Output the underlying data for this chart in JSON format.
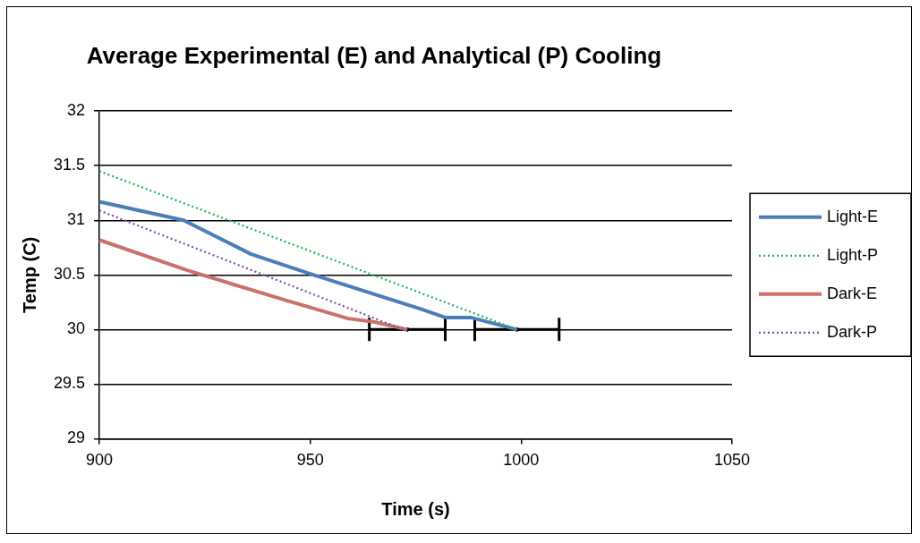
{
  "chart_data": {
    "type": "line",
    "title": "Average Experimental (E) and Analytical (P) Cooling",
    "xlabel": "Time (s)",
    "ylabel": "Temp (C)",
    "xlim": [
      900,
      1050
    ],
    "xticks": [
      900,
      950,
      1000,
      1050
    ],
    "ylim": [
      29,
      32
    ],
    "yticks": [
      29,
      29.5,
      30,
      30.5,
      31,
      31.5,
      32
    ],
    "grid": "y",
    "legend": "right",
    "marker": "none",
    "series": [
      {
        "name": "Light-E",
        "color": "#4a7ebb",
        "line_style": "solid",
        "x": [
          900,
          920,
          936,
          950,
          976,
          982,
          988,
          999
        ],
        "values": [
          31.17,
          31.0,
          30.69,
          30.51,
          30.19,
          30.11,
          30.11,
          30.0
        ]
      },
      {
        "name": "Light-P",
        "color": "#1fb45a",
        "line_style": "dotted",
        "x": [
          900,
          999
        ],
        "values": [
          31.45,
          30.0
        ]
      },
      {
        "name": "Dark-E",
        "color": "#c9716a",
        "line_style": "solid",
        "x": [
          900,
          921,
          944,
          959,
          965,
          973
        ],
        "values": [
          30.82,
          30.54,
          30.27,
          30.1,
          30.07,
          30.0
        ]
      },
      {
        "name": "Dark-P",
        "color": "#7d4fb0",
        "line_style": "dotted",
        "x": [
          900,
          972
        ],
        "values": [
          31.09,
          30.0
        ]
      },
      {
        "type": "scatter",
        "color": "#000000",
        "marker": "circle",
        "x": [
          973,
          999
        ],
        "values": [
          30,
          30
        ],
        "xerrors": [
          [
            964,
            982
          ],
          [
            989,
            1009
          ]
        ]
      }
    ]
  }
}
